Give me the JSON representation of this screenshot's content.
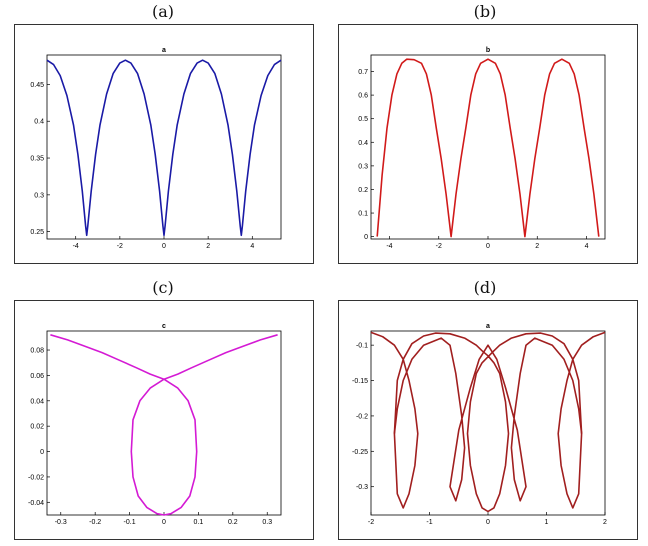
{
  "panels": [
    {
      "label": "(a)"
    },
    {
      "label": "(b)"
    },
    {
      "label": "(c)"
    },
    {
      "label": "(d)"
    }
  ],
  "chart_data": [
    {
      "type": "line",
      "title": "a",
      "color": "#1a1aa6",
      "xlim": [
        -5.3,
        5.3
      ],
      "ylim": [
        0.24,
        0.49
      ],
      "xticks": [
        {
          "v": -4,
          "t": "-4"
        },
        {
          "v": -2,
          "t": "-2"
        },
        {
          "v": 0,
          "t": "0"
        },
        {
          "v": 2,
          "t": "2"
        },
        {
          "v": 4,
          "t": "4"
        }
      ],
      "yticks": [
        {
          "v": 0.25,
          "t": "0.25"
        },
        {
          "v": 0.3,
          "t": "0.3"
        },
        {
          "v": 0.35,
          "t": "0.35"
        },
        {
          "v": 0.4,
          "t": "0.4"
        },
        {
          "v": 0.45,
          "t": "0.45"
        }
      ],
      "series": [
        {
          "x": [
            -5.3,
            -5.0,
            -4.7,
            -4.4,
            -4.1,
            -3.9,
            -3.7,
            -3.55,
            -3.5,
            -3.45,
            -3.3,
            -3.1,
            -2.9,
            -2.6,
            -2.3,
            -2.0,
            -1.75,
            -1.5,
            -1.2,
            -0.9,
            -0.6,
            -0.4,
            -0.2,
            -0.05,
            0.0,
            0.05,
            0.2,
            0.4,
            0.6,
            0.9,
            1.2,
            1.5,
            1.75,
            2.0,
            2.3,
            2.6,
            2.9,
            3.1,
            3.3,
            3.45,
            3.5,
            3.55,
            3.7,
            3.9,
            4.1,
            4.4,
            4.7,
            5.0,
            5.3
          ],
          "y": [
            0.483,
            0.477,
            0.462,
            0.435,
            0.395,
            0.355,
            0.305,
            0.258,
            0.245,
            0.258,
            0.305,
            0.355,
            0.395,
            0.437,
            0.465,
            0.479,
            0.483,
            0.479,
            0.465,
            0.437,
            0.395,
            0.355,
            0.305,
            0.258,
            0.245,
            0.258,
            0.305,
            0.355,
            0.395,
            0.437,
            0.465,
            0.479,
            0.483,
            0.479,
            0.465,
            0.437,
            0.395,
            0.355,
            0.305,
            0.258,
            0.245,
            0.258,
            0.305,
            0.355,
            0.395,
            0.435,
            0.462,
            0.477,
            0.483
          ]
        }
      ]
    },
    {
      "type": "line",
      "title": "b",
      "color": "#d11a1a",
      "xlim": [
        -4.75,
        4.75
      ],
      "ylim": [
        -0.01,
        0.77
      ],
      "xticks": [
        {
          "v": -4,
          "t": "-4"
        },
        {
          "v": -2,
          "t": "-2"
        },
        {
          "v": 0,
          "t": "0"
        },
        {
          "v": 2,
          "t": "2"
        },
        {
          "v": 4,
          "t": "4"
        }
      ],
      "yticks": [
        {
          "v": 0,
          "t": "0"
        },
        {
          "v": 0.1,
          "t": "0.1"
        },
        {
          "v": 0.2,
          "t": "0.2"
        },
        {
          "v": 0.3,
          "t": "0.3"
        },
        {
          "v": 0.4,
          "t": "0.4"
        },
        {
          "v": 0.5,
          "t": "0.5"
        },
        {
          "v": 0.6,
          "t": "0.6"
        },
        {
          "v": 0.7,
          "t": "0.7"
        }
      ],
      "series": [
        {
          "x": [
            -4.5,
            -4.3,
            -4.1,
            -3.9,
            -3.7,
            -3.5,
            -3.3,
            -3.0,
            -2.7,
            -2.5,
            -2.3,
            -2.1,
            -1.9,
            -1.7,
            -1.5,
            -1.3,
            -1.1,
            -0.9,
            -0.7,
            -0.5,
            -0.3,
            0.0,
            0.3,
            0.5,
            0.7,
            0.9,
            1.1,
            1.3,
            1.5,
            1.7,
            1.9,
            2.1,
            2.3,
            2.5,
            2.7,
            3.0,
            3.3,
            3.5,
            3.7,
            3.9,
            4.1,
            4.3,
            4.5
          ],
          "y": [
            0.0,
            0.26,
            0.46,
            0.6,
            0.69,
            0.735,
            0.752,
            0.75,
            0.735,
            0.69,
            0.6,
            0.46,
            0.33,
            0.18,
            0.0,
            0.18,
            0.33,
            0.46,
            0.6,
            0.69,
            0.735,
            0.752,
            0.735,
            0.69,
            0.6,
            0.46,
            0.33,
            0.18,
            0.0,
            0.18,
            0.33,
            0.46,
            0.6,
            0.69,
            0.735,
            0.752,
            0.735,
            0.69,
            0.6,
            0.46,
            0.33,
            0.18,
            0.0
          ]
        }
      ]
    },
    {
      "type": "line",
      "title": "c",
      "color": "#d41ad4",
      "xlim": [
        -0.34,
        0.34
      ],
      "ylim": [
        -0.05,
        0.095
      ],
      "xticks": [
        {
          "v": -0.3,
          "t": "-0.3"
        },
        {
          "v": -0.2,
          "t": "-0.2"
        },
        {
          "v": -0.1,
          "t": "-0.1"
        },
        {
          "v": 0,
          "t": "0"
        },
        {
          "v": 0.1,
          "t": "0.1"
        },
        {
          "v": 0.2,
          "t": "0.2"
        },
        {
          "v": 0.3,
          "t": "0.3"
        }
      ],
      "yticks": [
        {
          "v": -0.04,
          "t": "-0.04"
        },
        {
          "v": -0.02,
          "t": "-0.02"
        },
        {
          "v": 0,
          "t": "0"
        },
        {
          "v": 0.02,
          "t": "0.02"
        },
        {
          "v": 0.04,
          "t": "0.04"
        },
        {
          "v": 0.06,
          "t": "0.06"
        },
        {
          "v": 0.08,
          "t": "0.08"
        }
      ],
      "series": [
        {
          "x": [
            -0.33,
            -0.28,
            -0.23,
            -0.18,
            -0.13,
            -0.08,
            -0.04,
            0.0,
            0.04,
            0.07,
            0.09,
            0.095,
            0.09,
            0.075,
            0.05,
            0.02,
            0.0,
            -0.02,
            -0.05,
            -0.075,
            -0.09,
            -0.095,
            -0.09,
            -0.07,
            -0.04,
            0.0,
            0.04,
            0.08,
            0.13,
            0.18,
            0.23,
            0.28,
            0.33
          ],
          "y": [
            0.092,
            0.088,
            0.083,
            0.078,
            0.072,
            0.066,
            0.061,
            0.057,
            0.05,
            0.04,
            0.025,
            0.0,
            -0.02,
            -0.035,
            -0.044,
            -0.049,
            -0.05,
            -0.049,
            -0.044,
            -0.035,
            -0.02,
            0.0,
            0.025,
            0.04,
            0.05,
            0.057,
            0.061,
            0.066,
            0.072,
            0.078,
            0.083,
            0.088,
            0.092
          ]
        }
      ]
    },
    {
      "type": "line",
      "title": "a",
      "color": "#a11f1f",
      "xlim": [
        -2,
        2
      ],
      "ylim": [
        -0.34,
        -0.08
      ],
      "xticks": [
        {
          "v": -2,
          "t": "-2"
        },
        {
          "v": -1,
          "t": "-1"
        },
        {
          "v": 0,
          "t": "0"
        },
        {
          "v": 1,
          "t": "1"
        },
        {
          "v": 2,
          "t": "2"
        }
      ],
      "yticks": [
        {
          "v": -0.3,
          "t": "-0.3"
        },
        {
          "v": -0.25,
          "t": "-0.25"
        },
        {
          "v": -0.2,
          "t": "-0.2"
        },
        {
          "v": -0.15,
          "t": "-0.15"
        },
        {
          "v": -0.1,
          "t": "-0.1"
        }
      ],
      "series": [
        {
          "x": [
            -2.0,
            -1.8,
            -1.6,
            -1.45,
            -1.35,
            -1.25,
            -1.2,
            -1.25,
            -1.35,
            -1.45,
            -1.55,
            -1.6,
            -1.55,
            -1.45,
            -1.3,
            -1.1,
            -0.9,
            -0.65,
            -0.4,
            -0.2,
            -0.1,
            0.0,
            0.1,
            0.2,
            0.3,
            0.35,
            0.3,
            0.2,
            0.1,
            0.0,
            -0.1,
            -0.2,
            -0.3,
            -0.35,
            -0.3,
            -0.2,
            -0.1,
            0.1,
            0.2,
            0.4,
            0.65,
            0.9,
            1.1,
            1.3,
            1.45,
            1.55,
            1.6,
            1.55,
            1.45,
            1.35,
            1.25,
            1.2,
            1.25,
            1.35,
            1.45,
            1.6,
            1.8,
            2.0
          ],
          "y": [
            -0.082,
            -0.088,
            -0.1,
            -0.12,
            -0.15,
            -0.19,
            -0.225,
            -0.27,
            -0.31,
            -0.33,
            -0.31,
            -0.225,
            -0.15,
            -0.12,
            -0.098,
            -0.087,
            -0.083,
            -0.084,
            -0.09,
            -0.1,
            -0.108,
            -0.115,
            -0.125,
            -0.14,
            -0.18,
            -0.225,
            -0.27,
            -0.31,
            -0.33,
            -0.335,
            -0.33,
            -0.31,
            -0.27,
            -0.225,
            -0.18,
            -0.14,
            -0.125,
            -0.108,
            -0.1,
            -0.09,
            -0.084,
            -0.083,
            -0.087,
            -0.098,
            -0.12,
            -0.15,
            -0.225,
            -0.31,
            -0.33,
            -0.31,
            -0.27,
            -0.225,
            -0.19,
            -0.15,
            -0.12,
            -0.1,
            -0.088,
            -0.082
          ]
        },
        {
          "x": [
            -1.6,
            -1.55,
            -1.45,
            -1.3,
            -1.1,
            -0.8,
            -0.65,
            -0.55,
            -0.45,
            -0.4,
            -0.45,
            -0.55,
            -0.65,
            -0.5,
            -0.3,
            -0.15,
            0.0,
            0.15,
            0.3,
            0.5,
            0.65,
            0.55,
            0.45,
            0.4,
            0.45,
            0.55,
            0.65,
            0.8,
            1.1,
            1.3,
            1.45,
            1.55,
            1.6
          ],
          "y": [
            -0.225,
            -0.19,
            -0.15,
            -0.12,
            -0.1,
            -0.09,
            -0.1,
            -0.14,
            -0.2,
            -0.245,
            -0.29,
            -0.32,
            -0.3,
            -0.22,
            -0.16,
            -0.12,
            -0.1,
            -0.12,
            -0.16,
            -0.22,
            -0.3,
            -0.32,
            -0.29,
            -0.245,
            -0.2,
            -0.14,
            -0.1,
            -0.09,
            -0.1,
            -0.12,
            -0.15,
            -0.19,
            -0.225
          ]
        }
      ]
    }
  ]
}
